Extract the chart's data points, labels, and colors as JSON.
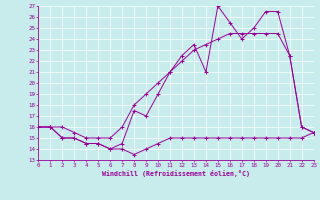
{
  "xlabel": "Windchill (Refroidissement éolien,°C)",
  "xlim": [
    0,
    23
  ],
  "ylim": [
    13,
    27
  ],
  "xticks": [
    0,
    1,
    2,
    3,
    4,
    5,
    6,
    7,
    8,
    9,
    10,
    11,
    12,
    13,
    14,
    15,
    16,
    17,
    18,
    19,
    20,
    21,
    22,
    23
  ],
  "yticks": [
    13,
    14,
    15,
    16,
    17,
    18,
    19,
    20,
    21,
    22,
    23,
    24,
    25,
    26,
    27
  ],
  "bg_color": "#c8ecec",
  "line_color": "#990099",
  "line1_x": [
    0,
    1,
    2,
    3,
    4,
    5,
    6,
    7,
    8,
    9,
    10,
    11,
    12,
    13,
    14,
    15,
    16,
    17,
    18,
    19,
    20,
    21,
    22,
    23
  ],
  "line1_y": [
    16,
    16,
    15,
    15,
    14.5,
    14.5,
    14,
    14,
    13.5,
    14,
    14.5,
    15,
    15,
    15,
    15,
    15,
    15,
    15,
    15,
    15,
    15,
    15,
    15,
    15.5
  ],
  "line2_x": [
    0,
    1,
    2,
    3,
    4,
    5,
    6,
    7,
    8,
    9,
    10,
    11,
    12,
    13,
    14,
    15,
    16,
    17,
    18,
    19,
    20,
    21,
    22,
    23
  ],
  "line2_y": [
    16,
    16,
    16,
    15.5,
    15,
    15,
    15,
    16,
    18,
    19,
    20,
    21,
    22,
    23,
    23.5,
    24,
    24.5,
    24.5,
    24.5,
    24.5,
    24.5,
    22.5,
    16,
    15.5
  ],
  "line3_x": [
    0,
    1,
    2,
    3,
    4,
    5,
    6,
    7,
    8,
    9,
    10,
    11,
    12,
    13,
    14,
    15,
    16,
    17,
    18,
    19,
    20,
    21,
    22,
    23
  ],
  "line3_y": [
    16,
    16,
    15,
    15,
    14.5,
    14.5,
    14,
    14.5,
    17.5,
    17,
    19,
    21,
    22.5,
    23.5,
    21,
    27,
    25.5,
    24,
    25,
    26.5,
    26.5,
    22.5,
    16,
    15.5
  ]
}
